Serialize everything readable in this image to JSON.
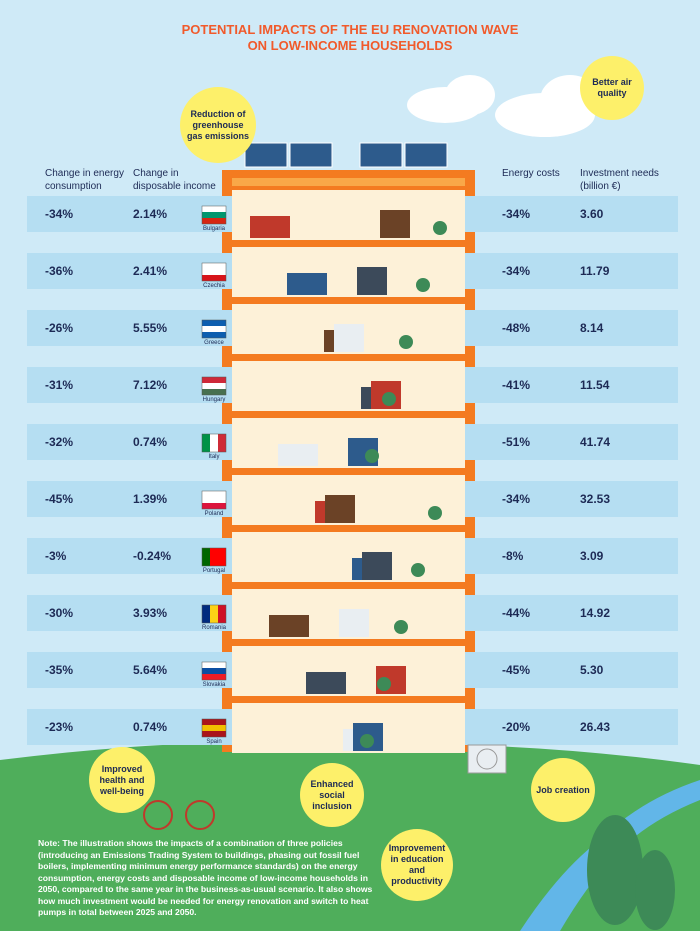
{
  "header": {
    "title_line1": "POTENTIAL IMPACTS OF THE EU RENOVATION WAVE",
    "title_line2": "ON LOW-INCOME HOUSEHOLDS"
  },
  "columns": [
    "Change in energy consumption",
    "Change in disposable income",
    "Energy costs",
    "Investment needs (billion €)"
  ],
  "rows": [
    {
      "country": "Bulgaria",
      "energy_consumption": "-34%",
      "disposable_income": "2.14%",
      "energy_costs": "-34%",
      "investment": "3.60"
    },
    {
      "country": "Czechia",
      "energy_consumption": "-36%",
      "disposable_income": "2.41%",
      "energy_costs": "-34%",
      "investment": "11.79"
    },
    {
      "country": "Greece",
      "energy_consumption": "-26%",
      "disposable_income": "5.55%",
      "energy_costs": "-48%",
      "investment": "8.14"
    },
    {
      "country": "Hungary",
      "energy_consumption": "-31%",
      "disposable_income": "7.12%",
      "energy_costs": "-41%",
      "investment": "11.54"
    },
    {
      "country": "Italy",
      "energy_consumption": "-32%",
      "disposable_income": "0.74%",
      "energy_costs": "-51%",
      "investment": "41.74"
    },
    {
      "country": "Poland",
      "energy_consumption": "-45%",
      "disposable_income": "1.39%",
      "energy_costs": "-34%",
      "investment": "32.53"
    },
    {
      "country": "Portugal",
      "energy_consumption": "-3%",
      "disposable_income": "-0.24%",
      "energy_costs": "-8%",
      "investment": "3.09"
    },
    {
      "country": "Romania",
      "energy_consumption": "-30%",
      "disposable_income": "3.93%",
      "energy_costs": "-44%",
      "investment": "14.92"
    },
    {
      "country": "Slovakia",
      "energy_consumption": "-35%",
      "disposable_income": "5.64%",
      "energy_costs": "-45%",
      "investment": "5.30"
    },
    {
      "country": "Spain",
      "energy_consumption": "-23%",
      "disposable_income": "0.74%",
      "energy_costs": "-20%",
      "investment": "26.43"
    }
  ],
  "bubbles": [
    "Reduction of greenhouse gas emissions",
    "Better air quality",
    "Improved health and well-being",
    "Enhanced social inclusion",
    "Job creation",
    "Improvement in education and productivity"
  ],
  "note": "Note: The illustration shows the impacts of a combination of three policies (introducing an Emissions Trading System to buildings, phasing out fossil fuel boilers, implementing minimum energy performance standards) on the energy consumption, energy costs and disposable income of low-income households in 2050, compared to the same year in the business-as-usual scenario. It also shows how much investment would be needed for energy renovation and switch to heat pumps in total between 2025 and 2050."
}
